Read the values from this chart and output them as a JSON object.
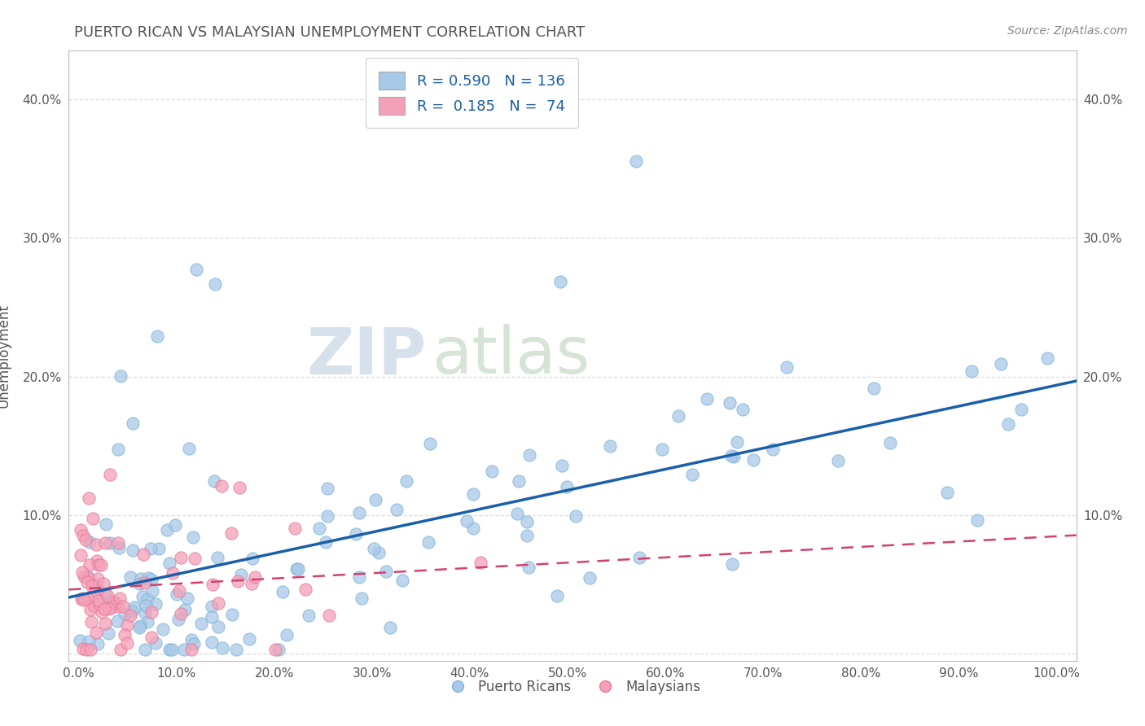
{
  "title": "PUERTO RICAN VS MALAYSIAN UNEMPLOYMENT CORRELATION CHART",
  "source": "Source: ZipAtlas.com",
  "xlabel": "",
  "ylabel": "Unemployment",
  "xlim": [
    -0.01,
    1.02
  ],
  "ylim": [
    -0.005,
    0.435
  ],
  "xticks": [
    0.0,
    0.1,
    0.2,
    0.3,
    0.4,
    0.5,
    0.6,
    0.7,
    0.8,
    0.9,
    1.0
  ],
  "xticklabels": [
    "0.0%",
    "10.0%",
    "20.0%",
    "30.0%",
    "40.0%",
    "50.0%",
    "60.0%",
    "70.0%",
    "80.0%",
    "90.0%",
    "100.0%"
  ],
  "yticks": [
    0.0,
    0.1,
    0.2,
    0.3,
    0.4
  ],
  "yticklabels_left": [
    "",
    "10.0%",
    "20.0%",
    "30.0%",
    "40.0%"
  ],
  "yticklabels_right": [
    "",
    "10.0%",
    "20.0%",
    "30.0%",
    "40.0%"
  ],
  "blue_color": "#A8C8E8",
  "pink_color": "#F4A0B8",
  "blue_edge_color": "#7EB5D6",
  "pink_edge_color": "#E87898",
  "blue_line_color": "#1A5FA8",
  "pink_line_color": "#D44070",
  "legend_R1": "0.590",
  "legend_N1": "136",
  "legend_R2": "0.185",
  "legend_N2": "74",
  "watermark_zip": "ZIP",
  "watermark_atlas": "atlas",
  "title_color": "#555555",
  "tick_color": "#555555",
  "grid_color": "#DDDDDD",
  "source_color": "#888888"
}
